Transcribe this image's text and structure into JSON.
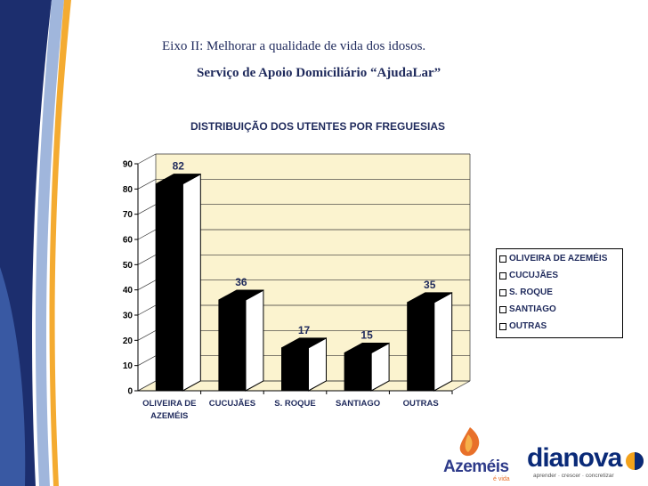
{
  "header": {
    "line1": "Eixo II: Melhorar a qualidade de vida dos idosos.",
    "line2": "Serviço de Apoio Domiciliário “AjudaLar”"
  },
  "colors": {
    "band_dark": "#1c2e6e",
    "band_blue": "#3d5ea8",
    "band_light": "#8fa9d6",
    "band_orange": "#f3a21b",
    "text_navy": "#1f2a5c",
    "plot_bg": "#fbf3cf",
    "bar_front": "#000000",
    "bar_side": "#ffffff"
  },
  "chart_data": {
    "type": "bar",
    "title": "DISTRIBUIÇÃO DOS UTENTES POR FREGUESIAS",
    "categories": [
      "OLIVEIRA DE AZEMÉIS",
      "CUCUJÃES",
      "S. ROQUE",
      "SANTIAGO",
      "OUTRAS"
    ],
    "category_lines": [
      [
        "OLIVEIRA DE",
        "AZEMÉIS"
      ],
      [
        "CUCUJÃES"
      ],
      [
        "S. ROQUE"
      ],
      [
        "SANTIAGO"
      ],
      [
        "OUTRAS"
      ]
    ],
    "values": [
      82,
      36,
      17,
      15,
      35
    ],
    "data_labels": [
      "82",
      "36",
      "17",
      "15",
      "35"
    ],
    "ylim": [
      0,
      90
    ],
    "yticks": [
      "0",
      "10",
      "20",
      "30",
      "40",
      "50",
      "60",
      "70",
      "80",
      "90"
    ],
    "xlabel": "",
    "ylabel": "",
    "grid": true,
    "legend": {
      "position": "right",
      "entries": [
        "OLIVEIRA DE AZEMÉIS",
        "CUCUJÃES",
        "S. ROQUE",
        "SANTIAGO",
        "OUTRAS"
      ]
    }
  },
  "logos": {
    "azemeis": {
      "name": "Azeméis",
      "tagline": "é vida"
    },
    "dianova": {
      "name": "dianova",
      "tagline": "aprender · crescer · concretizar"
    }
  }
}
